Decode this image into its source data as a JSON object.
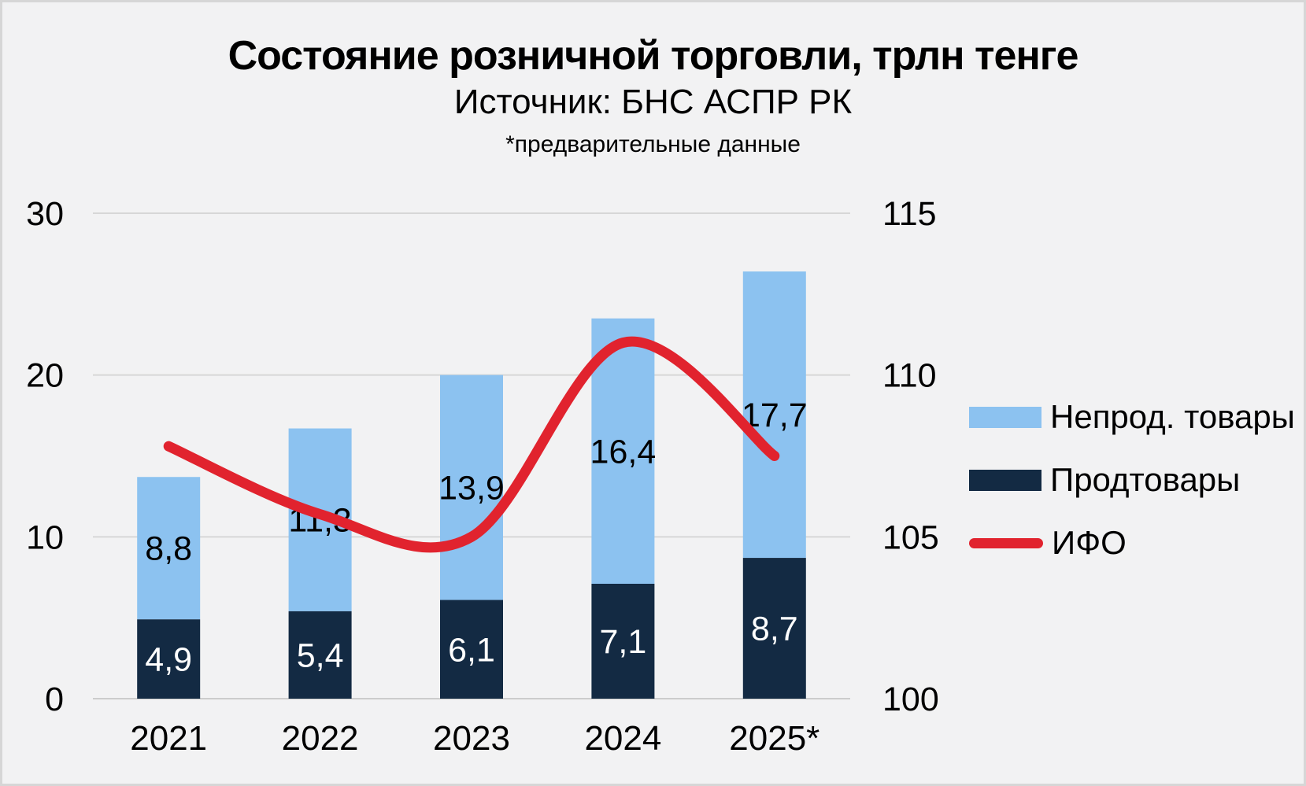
{
  "chart_data": {
    "type": "bar",
    "subtype": "stacked-bar-with-line",
    "title": "Состояние розничной торговли, трлн тенге",
    "subtitle": "Источник: БНС АСПР РК",
    "note": "*предварительные данные",
    "categories": [
      "2021",
      "2022",
      "2023",
      "2024",
      "2025*"
    ],
    "series": [
      {
        "name": "Продтовары",
        "type": "bar",
        "stack": "retail",
        "color": "#132a43",
        "label_color": "#ffffff",
        "values": [
          4.9,
          5.4,
          6.1,
          7.1,
          8.7
        ]
      },
      {
        "name": "Непрод. товары",
        "type": "bar",
        "stack": "retail",
        "color": "#8cc2f0",
        "label_color": "#000000",
        "values": [
          8.8,
          11.3,
          13.9,
          16.4,
          17.7
        ]
      },
      {
        "name": "ИФО",
        "type": "line",
        "axis": "right",
        "color": "#e1232e",
        "values": [
          107.8,
          105.7,
          105.0,
          111.0,
          107.5
        ]
      }
    ],
    "left_axis": {
      "ticks": [
        0,
        10,
        20,
        30
      ],
      "range": [
        0,
        30
      ]
    },
    "right_axis": {
      "ticks": [
        100,
        105,
        110,
        115
      ],
      "range": [
        100,
        115
      ]
    },
    "decimal_separator": ",",
    "grid": true,
    "legend_position": "right",
    "colors": {
      "background": "#f2f2f3",
      "gridline": "#d7d7d7",
      "baseline": "#cccccc",
      "text": "#000000"
    }
  },
  "legend": {
    "items": [
      {
        "label": "Непрод. товары",
        "swatch": "rect",
        "color": "#8cc2f0"
      },
      {
        "label": "Продтовары",
        "swatch": "rect",
        "color": "#132a43"
      },
      {
        "label": "ИФО",
        "swatch": "line",
        "color": "#e1232e"
      }
    ]
  }
}
